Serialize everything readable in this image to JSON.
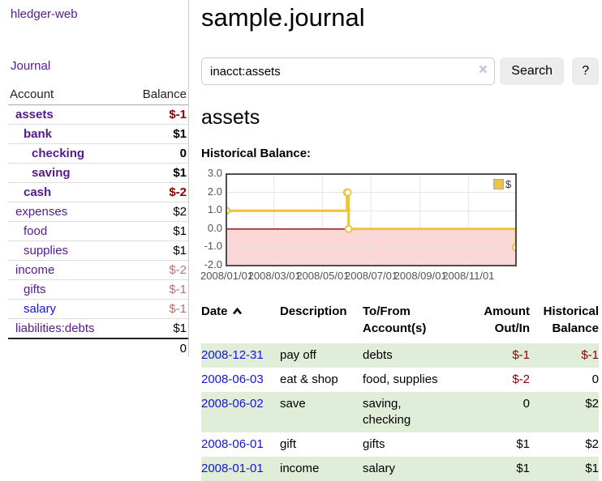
{
  "app": {
    "brand": "hledger-web",
    "nav_journal": "Journal"
  },
  "sidebar": {
    "table_headers": {
      "account": "Account",
      "balance": "Balance"
    },
    "accounts": [
      {
        "label": "assets",
        "indent": 1,
        "bold": true,
        "balance": "$-1",
        "neg": "strong",
        "link": "purple"
      },
      {
        "label": "bank",
        "indent": 2,
        "bold": true,
        "balance": "$1",
        "neg": null,
        "link": "purple"
      },
      {
        "label": "checking",
        "indent": 3,
        "bold": true,
        "balance": "0",
        "neg": null,
        "link": "purple"
      },
      {
        "label": "saving",
        "indent": 3,
        "bold": true,
        "balance": "$1",
        "neg": null,
        "link": "purple"
      },
      {
        "label": "cash",
        "indent": 2,
        "bold": true,
        "balance": "$-2",
        "neg": "strong",
        "link": "purple"
      },
      {
        "label": "expenses",
        "indent": 1,
        "bold": false,
        "balance": "$2",
        "neg": null,
        "link": "purple"
      },
      {
        "label": "food",
        "indent": 2,
        "bold": false,
        "balance": "$1",
        "neg": null,
        "link": "purple"
      },
      {
        "label": "supplies",
        "indent": 2,
        "bold": false,
        "balance": "$1",
        "neg": null,
        "link": "purple"
      },
      {
        "label": "income",
        "indent": 1,
        "bold": false,
        "balance": "$-2",
        "neg": "soft",
        "link": "purple"
      },
      {
        "label": "gifts",
        "indent": 2,
        "bold": false,
        "balance": "$-1",
        "neg": "soft",
        "link": "purple"
      },
      {
        "label": "salary",
        "indent": 2,
        "bold": false,
        "balance": "$-1",
        "neg": "soft",
        "link": "blue"
      },
      {
        "label": "liabilities:debts",
        "indent": 1,
        "bold": false,
        "balance": "$1",
        "neg": null,
        "link": "purple"
      }
    ],
    "total": "0"
  },
  "header": {
    "title": "sample.journal"
  },
  "search": {
    "value": "inacct:assets",
    "clear_icon": "×",
    "search_label": "Search",
    "help_label": "?"
  },
  "account_page": {
    "title": "assets",
    "chart_heading": "Historical Balance:"
  },
  "chart_data": {
    "type": "line",
    "step": true,
    "title": "Historical Balance",
    "series": [
      {
        "name": "$",
        "color": "#edc240",
        "points": [
          [
            "2008-01-01",
            1
          ],
          [
            "2008-06-01",
            2
          ],
          [
            "2008-06-02",
            2
          ],
          [
            "2008-06-03",
            0
          ],
          [
            "2008-12-31",
            -1
          ]
        ]
      }
    ],
    "xlim": [
      "2008-01-01",
      "2008-12-31"
    ],
    "ylim": [
      -2,
      3
    ],
    "yticks": [
      3.0,
      2.0,
      1.0,
      0.0,
      -1.0,
      -2.0
    ],
    "ytick_labels": [
      "3.0",
      "2.0",
      "1.0",
      "0.0",
      "-1.0",
      "-2.0"
    ],
    "xticks": [
      {
        "date": "2008-01-01",
        "label": "2008/01/01"
      },
      {
        "date": "2008-03-01",
        "label": "2008/03/01"
      },
      {
        "date": "2008-05-01",
        "label": "2008/05/01"
      },
      {
        "date": "2008-07-01",
        "label": "2008/07/01"
      },
      {
        "date": "2008-09-01",
        "label": "2008/09/01"
      },
      {
        "date": "2008-11-01",
        "label": "2008/11/01"
      }
    ],
    "grid": true,
    "legend_position": "top-right",
    "negative_region_fill": "#fbd7d7",
    "zero_line_color": "#8b0000",
    "grid_color": "#e4e4e4",
    "border_color": "#4d4d4d",
    "axis_label_color": "#545454"
  },
  "transactions": {
    "headers": {
      "date": "Date",
      "description": "Description",
      "accounts": "To/From\nAccount(s)",
      "amount": "Amount\nOut/In",
      "balance": "Historical\nBalance"
    },
    "sort_icon": "chevron-up",
    "rows": [
      {
        "date": "2008-12-31",
        "description": "pay off",
        "accounts": "debts",
        "amount": "$-1",
        "amount_neg": true,
        "balance": "$-1",
        "balance_neg": true
      },
      {
        "date": "2008-06-03",
        "description": "eat & shop",
        "accounts": "food, supplies",
        "amount": "$-2",
        "amount_neg": true,
        "balance": "0",
        "balance_neg": false
      },
      {
        "date": "2008-06-02",
        "description": "save",
        "accounts": "saving,\nchecking",
        "amount": "0",
        "amount_neg": false,
        "balance": "$2",
        "balance_neg": false
      },
      {
        "date": "2008-06-01",
        "description": "gift",
        "accounts": "gifts",
        "amount": "$1",
        "amount_neg": false,
        "balance": "$2",
        "balance_neg": false
      },
      {
        "date": "2008-01-01",
        "description": "income",
        "accounts": "salary",
        "amount": "$1",
        "amount_neg": false,
        "balance": "$1",
        "balance_neg": false
      }
    ]
  }
}
